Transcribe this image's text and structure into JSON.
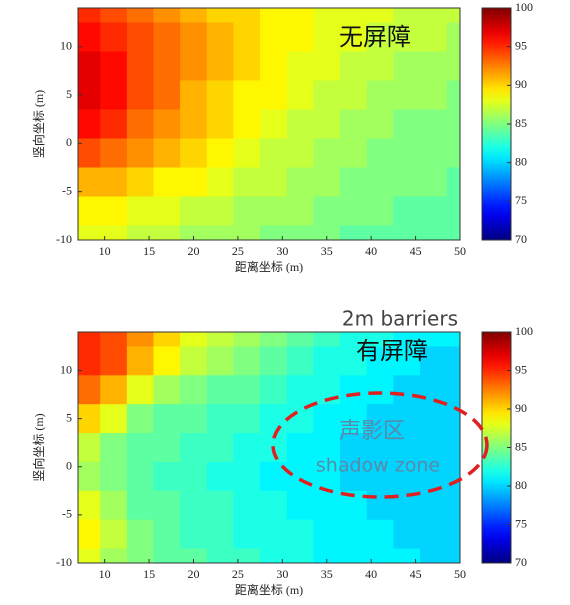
{
  "chart_data": [
    {
      "type": "heatmap",
      "title": "无屏障",
      "colormap": "jet",
      "xlabel": "距离坐标 (m)",
      "ylabel": "竖向坐标 (m)",
      "x": [
        8,
        11,
        14,
        17,
        20,
        23,
        26,
        29,
        32,
        35,
        38,
        41,
        44,
        47,
        50
      ],
      "y": [
        14,
        11,
        8,
        5,
        2,
        -1,
        -4,
        -7,
        -10
      ],
      "z": [
        [
          95,
          94,
          93,
          92,
          91,
          90,
          90,
          89,
          89,
          88,
          88,
          88,
          87,
          87,
          87
        ],
        [
          96,
          95,
          94,
          93,
          92,
          91,
          90,
          89,
          89,
          88,
          88,
          87,
          87,
          87,
          86
        ],
        [
          97,
          96,
          94,
          93,
          92,
          91,
          90,
          89,
          88,
          88,
          87,
          87,
          86,
          86,
          86
        ],
        [
          97,
          96,
          94,
          93,
          91,
          90,
          89,
          89,
          88,
          87,
          87,
          86,
          86,
          86,
          85
        ],
        [
          96,
          95,
          93,
          92,
          91,
          90,
          89,
          88,
          87,
          87,
          86,
          86,
          85,
          85,
          85
        ],
        [
          94,
          93,
          92,
          91,
          90,
          89,
          88,
          87,
          87,
          86,
          86,
          85,
          85,
          85,
          85
        ],
        [
          91,
          91,
          90,
          89,
          89,
          88,
          87,
          87,
          86,
          86,
          85,
          85,
          85,
          85,
          84
        ],
        [
          89,
          89,
          88,
          88,
          87,
          87,
          86,
          86,
          86,
          85,
          85,
          85,
          84,
          84,
          84
        ],
        [
          88,
          88,
          87,
          87,
          86,
          86,
          86,
          85,
          85,
          85,
          84,
          84,
          84,
          84,
          84
        ]
      ],
      "xlim": [
        7,
        50
      ],
      "ylim": [
        -10,
        14
      ],
      "xticks": [
        10,
        15,
        20,
        25,
        30,
        35,
        40,
        45,
        50
      ],
      "yticks": [
        -10,
        -5,
        0,
        5,
        10
      ],
      "clim": [
        70,
        100
      ],
      "cticks": [
        70,
        75,
        80,
        85,
        90,
        95,
        100
      ],
      "annotations": []
    },
    {
      "type": "heatmap",
      "title": "有屏障",
      "colormap": "jet",
      "xlabel": "距离坐标 (m)",
      "ylabel": "竖向坐标 (m)",
      "x": [
        8,
        11,
        14,
        17,
        20,
        23,
        26,
        29,
        32,
        35,
        38,
        41,
        44,
        47,
        50
      ],
      "y": [
        14,
        11,
        8,
        5,
        2,
        -1,
        -4,
        -7,
        -10
      ],
      "z": [
        [
          95,
          94,
          92,
          90,
          88,
          87,
          86,
          85,
          84,
          83,
          82,
          82,
          81,
          81,
          81
        ],
        [
          95,
          94,
          91,
          89,
          87,
          86,
          85,
          84,
          83,
          82,
          82,
          81,
          81,
          80,
          80
        ],
        [
          93,
          91,
          88,
          86,
          85,
          84,
          84,
          83,
          82,
          82,
          81,
          81,
          80,
          80,
          80
        ],
        [
          90,
          88,
          85,
          84,
          84,
          83,
          83,
          82,
          82,
          81,
          81,
          80,
          80,
          80,
          80
        ],
        [
          87,
          85,
          84,
          84,
          83,
          83,
          82,
          82,
          81,
          81,
          80,
          80,
          80,
          80,
          80
        ],
        [
          86,
          85,
          84,
          83,
          83,
          82,
          82,
          81,
          81,
          81,
          80,
          80,
          80,
          80,
          80
        ],
        [
          88,
          86,
          84,
          84,
          83,
          83,
          82,
          82,
          81,
          81,
          81,
          80,
          80,
          80,
          80
        ],
        [
          89,
          87,
          85,
          84,
          83,
          83,
          82,
          82,
          82,
          81,
          81,
          81,
          80,
          80,
          80
        ],
        [
          88,
          86,
          85,
          84,
          84,
          83,
          83,
          82,
          82,
          81,
          81,
          81,
          81,
          80,
          80
        ]
      ],
      "xlim": [
        7,
        50
      ],
      "ylim": [
        -10,
        14
      ],
      "xticks": [
        10,
        15,
        20,
        25,
        30,
        35,
        40,
        45,
        50
      ],
      "yticks": [
        -10,
        -5,
        0,
        5,
        10
      ],
      "clim": [
        70,
        100
      ],
      "cticks": [
        70,
        75,
        80,
        85,
        90,
        95,
        100
      ],
      "annotations": [
        "2m barriers",
        "声影区",
        "shadow zone"
      ]
    }
  ]
}
